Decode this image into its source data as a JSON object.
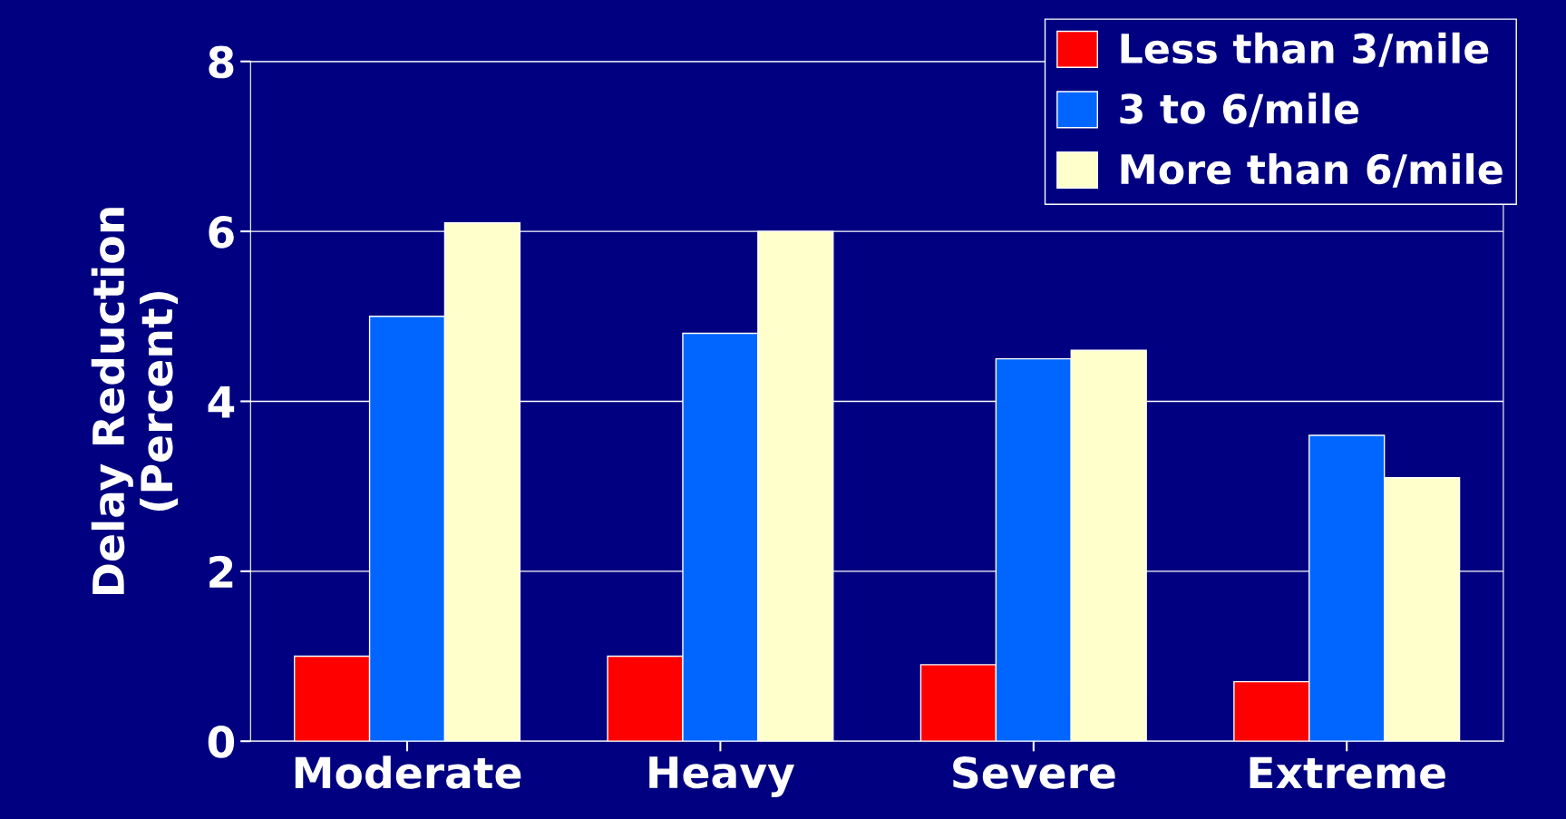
{
  "chart_data": {
    "type": "bar",
    "ylabel": "Delay Reduction\n(Percent)",
    "categories": [
      "Moderate",
      "Heavy",
      "Severe",
      "Extreme"
    ],
    "series": [
      {
        "name": "Less than 3/mile",
        "color": "#ff0000",
        "values": [
          1.0,
          1.0,
          0.9,
          0.7
        ]
      },
      {
        "name": "3 to 6/mile",
        "color": "#0066ff",
        "values": [
          5.0,
          4.8,
          4.5,
          3.6
        ]
      },
      {
        "name": "More than 6/mile",
        "color": "#ffffcc",
        "values": [
          6.1,
          6.0,
          4.6,
          3.1
        ]
      }
    ],
    "ylim": [
      0,
      8
    ],
    "yticks": [
      0,
      2,
      4,
      6,
      8
    ],
    "grid": "y",
    "legend": "top right"
  }
}
